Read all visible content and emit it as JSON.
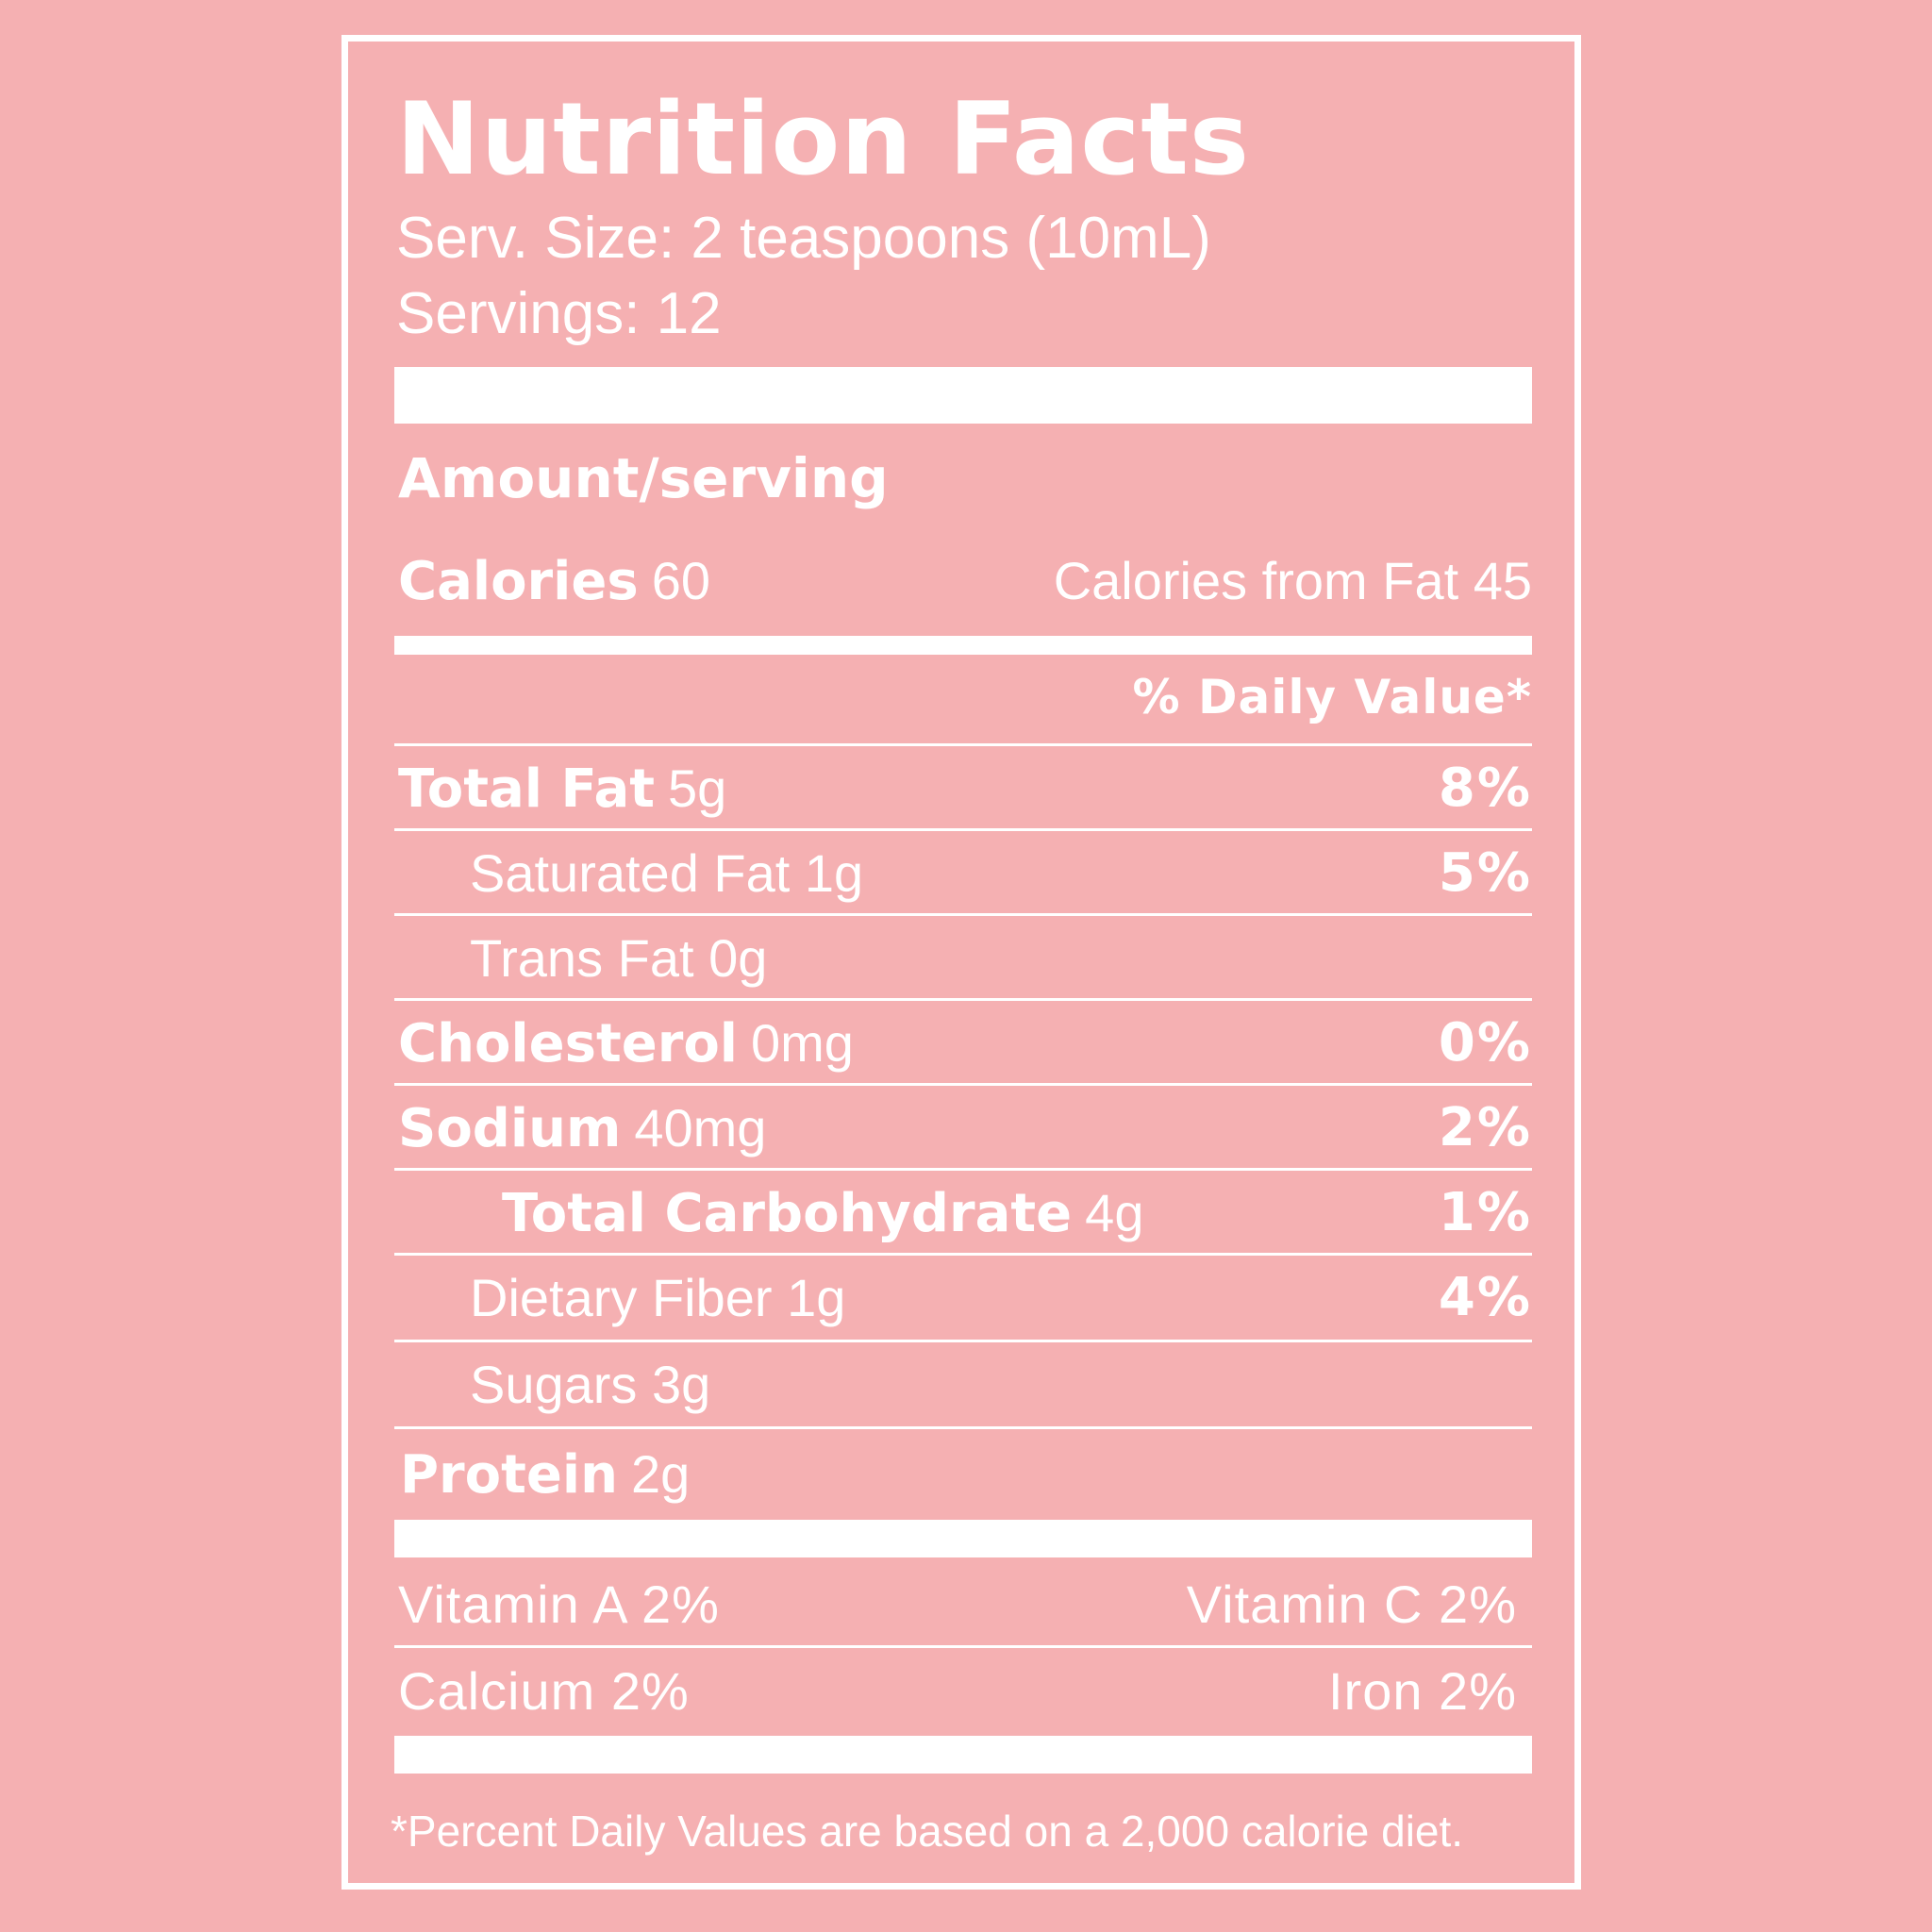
{
  "title": "Nutrition Facts",
  "serving_size": "Serv. Size: 2 teaspoons (10mL)",
  "servings": "Servings: 12",
  "amount_per_serving": "Amount/serving",
  "calories": {
    "label": "Calories",
    "value": "60",
    "from_fat": "Calories from Fat 45"
  },
  "daily_value_header": "% Daily Value*",
  "nutrients": [
    {
      "name": "Total Fat",
      "amount": "5g",
      "pct": "8%"
    },
    {
      "name": "Saturated Fat",
      "amount": "1g",
      "pct": "5%"
    },
    {
      "name": "Trans Fat",
      "amount": "0g",
      "pct": ""
    },
    {
      "name": "Cholesterol",
      "amount": "0mg",
      "pct": "0%"
    },
    {
      "name": "Sodium",
      "amount": "40mg",
      "pct": "2%"
    },
    {
      "name": "Total Carbohydrate",
      "amount": "4g",
      "pct": "1%"
    },
    {
      "name": "Dietary Fiber",
      "amount": "1g",
      "pct": "4%"
    },
    {
      "name": "Sugars",
      "amount": "3g",
      "pct": ""
    },
    {
      "name": "Protein",
      "amount": "2g",
      "pct": ""
    }
  ],
  "vitamins": [
    {
      "left": "Vitamin A 2%",
      "right": "Vitamin C 2%"
    },
    {
      "left": "Calcium 2%",
      "right": "Iron 2%"
    }
  ],
  "footnote": "*Percent Daily Values are based on a 2,000 calorie diet.",
  "colors": {
    "background": "#f5b0b2",
    "foreground": "#ffffff"
  }
}
